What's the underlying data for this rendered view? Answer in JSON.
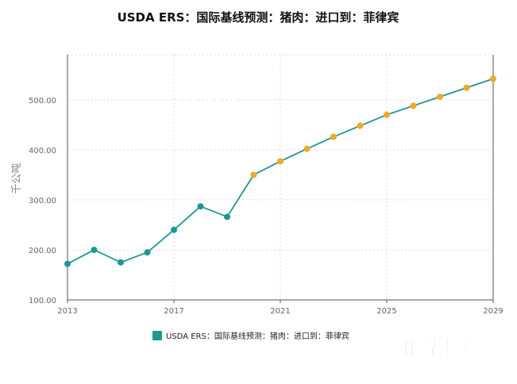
{
  "chart_data": {
    "type": "line",
    "title": "USDA ERS：国际基线预测：猪肉：进口到：菲律宾",
    "ylabel": "千公吨",
    "xlabel": "",
    "ylim": [
      100,
      590
    ],
    "xlim": [
      2013,
      2029
    ],
    "yticks": [
      100,
      200,
      300,
      400,
      500
    ],
    "ytick_labels": [
      "100.00",
      "200.00",
      "300.00",
      "400.00",
      "500.00"
    ],
    "xticks": [
      2013,
      2017,
      2021,
      2025,
      2029
    ],
    "xtick_labels": [
      "2013",
      "2017",
      "2021",
      "2025",
      "2029"
    ],
    "grid": true,
    "legend_position": "bottom",
    "line_color": "#1a9990",
    "historical_marker_color": "#1a9990",
    "forecast_marker_color": "#f5a81c",
    "forecast_start_year": 2020,
    "series": [
      {
        "name": "USDA ERS：国际基线预测：猪肉：进口到：菲律宾",
        "x": [
          2013,
          2014,
          2015,
          2016,
          2017,
          2018,
          2019,
          2020,
          2021,
          2022,
          2023,
          2024,
          2025,
          2026,
          2027,
          2028,
          2029
        ],
        "values": [
          172,
          200,
          175,
          195,
          240,
          287,
          266,
          350,
          377,
          402,
          426,
          448,
          470,
          488,
          506,
          524,
          542
        ]
      }
    ]
  },
  "watermark": {
    "text": "菲华网",
    "color": "#1c4fb5"
  }
}
